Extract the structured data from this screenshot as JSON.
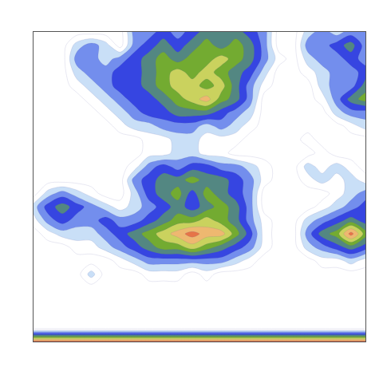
{
  "chart_data": {
    "type": "contour",
    "x": [
      0,
      1,
      2,
      3,
      4,
      5,
      6,
      7,
      8,
      9,
      10,
      11,
      12,
      13,
      14,
      15,
      16,
      17,
      18,
      19,
      20,
      21,
      22,
      23
    ],
    "y": [
      0,
      1,
      2,
      3,
      4,
      5,
      6,
      7,
      8,
      9,
      10,
      11,
      12,
      13,
      14,
      15,
      16,
      17,
      18,
      19,
      20,
      21,
      22,
      23
    ],
    "z": [
      [
        9,
        9,
        9,
        9,
        9,
        9,
        9,
        9,
        9,
        9,
        9,
        9,
        9,
        9,
        9,
        9,
        9,
        9,
        9,
        9,
        9,
        9,
        9,
        9
      ],
      [
        0,
        0,
        0,
        0,
        0,
        0,
        0,
        0,
        0,
        0,
        0,
        0,
        0,
        0,
        0,
        0,
        0,
        0,
        0,
        0,
        0,
        0,
        0,
        0
      ],
      [
        0,
        0,
        0,
        0,
        0,
        0,
        0,
        0,
        0,
        0,
        0,
        0,
        0,
        0,
        0,
        0,
        0,
        0,
        0,
        0,
        0,
        0,
        0,
        0
      ],
      [
        0,
        0,
        0,
        0,
        0,
        0,
        0,
        0,
        0,
        0,
        0,
        0,
        0,
        0,
        0,
        0,
        0,
        0,
        0,
        0,
        0,
        0,
        0,
        0
      ],
      [
        0,
        0,
        0,
        0,
        0,
        0,
        0,
        0,
        0,
        0,
        0,
        0,
        0,
        0,
        0,
        0,
        0,
        0,
        0,
        0,
        0,
        0,
        0,
        0
      ],
      [
        0,
        0,
        0,
        0,
        2,
        0,
        0,
        0,
        1,
        1,
        1,
        0,
        1,
        0,
        0,
        0,
        0,
        0,
        0,
        0,
        0,
        0,
        0,
        0
      ],
      [
        0,
        0,
        0,
        0,
        0,
        0,
        1,
        2,
        3,
        3,
        3,
        3,
        3,
        3,
        2,
        1,
        0,
        0,
        0,
        0,
        1,
        1,
        2,
        1
      ],
      [
        0,
        0,
        0,
        1,
        1,
        2,
        3,
        4,
        5,
        6,
        6,
        7,
        6,
        5,
        4,
        3,
        1,
        0,
        0,
        2,
        3,
        4,
        5,
        4
      ],
      [
        0,
        1,
        2,
        2,
        2,
        3,
        4,
        5,
        6,
        7,
        8,
        9,
        8,
        8,
        6,
        4,
        1,
        0,
        0,
        3,
        5,
        6,
        9,
        6
      ],
      [
        1,
        3,
        4,
        3,
        3,
        4,
        3,
        3,
        4,
        5,
        6,
        6,
        7,
        6,
        5,
        3,
        1,
        0,
        0,
        2,
        3,
        4,
        5,
        4
      ],
      [
        2,
        4,
        5,
        4,
        3,
        2,
        1,
        2,
        3,
        4,
        5,
        4,
        5,
        6,
        5,
        3,
        0,
        0,
        0,
        0,
        1,
        2,
        3,
        4
      ],
      [
        0,
        2,
        3,
        2,
        1,
        0,
        0,
        2,
        4,
        5,
        6,
        4,
        6,
        5,
        4,
        3,
        0,
        0,
        0,
        0,
        0,
        1,
        2,
        3
      ],
      [
        0,
        0,
        0,
        0,
        0,
        0,
        0,
        3,
        4,
        5,
        5,
        6,
        5,
        5,
        4,
        3,
        1,
        0,
        0,
        1,
        2,
        1,
        2,
        1
      ],
      [
        0,
        0,
        0,
        0,
        0,
        0,
        0,
        1,
        3,
        4,
        3,
        4,
        4,
        3,
        3,
        2,
        1,
        0,
        0,
        2,
        1,
        2,
        1,
        0
      ],
      [
        0,
        0,
        0,
        0,
        0,
        0,
        0,
        0,
        1,
        1,
        2,
        2,
        1,
        1,
        0,
        0,
        0,
        0,
        0,
        0,
        1,
        0,
        0,
        0
      ],
      [
        0,
        0,
        0,
        0,
        0,
        0,
        0,
        0,
        1,
        1,
        2,
        2,
        1,
        1,
        1,
        0,
        0,
        0,
        0,
        1,
        0,
        0,
        0,
        0
      ],
      [
        0,
        0,
        0,
        0,
        0,
        0,
        1,
        2,
        2,
        3,
        3,
        3,
        2,
        3,
        2,
        1,
        0,
        0,
        0,
        0,
        0,
        0,
        1,
        2
      ],
      [
        0,
        0,
        0,
        0,
        0,
        1,
        2,
        3,
        4,
        4,
        5,
        5,
        5,
        4,
        3,
        2,
        0,
        0,
        0,
        0,
        0,
        2,
        3,
        3
      ],
      [
        0,
        0,
        0,
        0,
        1,
        2,
        3,
        4,
        4,
        5,
        6,
        7,
        8,
        6,
        5,
        3,
        0,
        0,
        0,
        0,
        1,
        3,
        5,
        6
      ],
      [
        0,
        0,
        0,
        1,
        2,
        3,
        4,
        4,
        5,
        6,
        7,
        7,
        6,
        7,
        5,
        3,
        1,
        0,
        0,
        0,
        2,
        3,
        3,
        5
      ],
      [
        0,
        0,
        0,
        2,
        3,
        3,
        4,
        4,
        5,
        6,
        7,
        6,
        7,
        6,
        5,
        4,
        2,
        0,
        0,
        1,
        2,
        3,
        3,
        4
      ],
      [
        0,
        0,
        0,
        3,
        3,
        2,
        3,
        4,
        5,
        6,
        5,
        6,
        6,
        7,
        6,
        5,
        3,
        1,
        0,
        2,
        3,
        3,
        4,
        3
      ],
      [
        0,
        0,
        0,
        2,
        3,
        2,
        0,
        3,
        4,
        5,
        4,
        5,
        6,
        5,
        6,
        5,
        3,
        0,
        0,
        3,
        3,
        4,
        5,
        3
      ],
      [
        0,
        0,
        0,
        0,
        0,
        0,
        0,
        3,
        3,
        4,
        3,
        4,
        5,
        5,
        5,
        4,
        3,
        0,
        0,
        2,
        3,
        2,
        3,
        3
      ]
    ],
    "xlim": [
      0,
      23
    ],
    "ylim": [
      0,
      23
    ],
    "zlim": [
      0,
      10
    ],
    "tick_labels": false,
    "grid": false
  }
}
